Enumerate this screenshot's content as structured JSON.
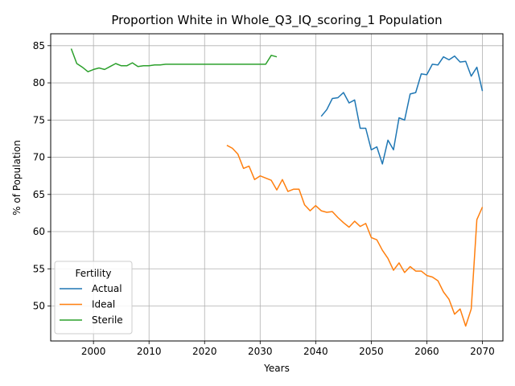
{
  "chart_data": {
    "type": "line",
    "title": "Proportion White in Whole_Q3_IQ_scoring_1 Population",
    "xlabel": "Years",
    "ylabel": "% of Population",
    "xlim": [
      1992.3,
      2073.7
    ],
    "ylim": [
      45.3,
      86.6
    ],
    "xticks": [
      2000,
      2010,
      2020,
      2030,
      2040,
      2050,
      2060,
      2070
    ],
    "yticks": [
      50,
      55,
      60,
      65,
      70,
      75,
      80,
      85
    ],
    "grid": true,
    "legend": {
      "title": "Fertility",
      "placement": "lower-left"
    },
    "series": [
      {
        "name": "Actual",
        "color": "#1f77b4",
        "x": [
          2041,
          2042,
          2043,
          2044,
          2045,
          2046,
          2047,
          2048,
          2049,
          2050,
          2051,
          2052,
          2053,
          2054,
          2055,
          2056,
          2057,
          2058,
          2059,
          2060,
          2061,
          2062,
          2063,
          2064,
          2065,
          2066,
          2067,
          2068,
          2069,
          2070
        ],
        "y": [
          75.5,
          76.4,
          77.9,
          78.0,
          78.7,
          77.3,
          77.7,
          73.9,
          73.9,
          71.0,
          71.4,
          69.1,
          72.3,
          71.0,
          75.3,
          75.0,
          78.5,
          78.7,
          81.2,
          81.1,
          82.5,
          82.4,
          83.5,
          83.1,
          83.6,
          82.8,
          82.9,
          80.9,
          82.1,
          78.9
        ]
      },
      {
        "name": "Ideal",
        "color": "#ff7f0e",
        "x": [
          2024,
          2025,
          2026,
          2027,
          2028,
          2029,
          2030,
          2031,
          2032,
          2033,
          2034,
          2035,
          2036,
          2037,
          2038,
          2039,
          2040,
          2041,
          2042,
          2043,
          2044,
          2045,
          2046,
          2047,
          2048,
          2049,
          2050,
          2051,
          2052,
          2053,
          2054,
          2055,
          2056,
          2057,
          2058,
          2059,
          2060,
          2061,
          2062,
          2063,
          2064,
          2065,
          2066,
          2067,
          2068,
          2069,
          2070
        ],
        "y": [
          71.6,
          71.2,
          70.4,
          68.5,
          68.8,
          67.0,
          67.5,
          67.2,
          66.9,
          65.6,
          67.0,
          65.4,
          65.7,
          65.7,
          63.6,
          62.8,
          63.5,
          62.8,
          62.6,
          62.7,
          61.9,
          61.2,
          60.6,
          61.4,
          60.7,
          61.1,
          59.2,
          58.9,
          57.5,
          56.4,
          54.8,
          55.8,
          54.5,
          55.3,
          54.7,
          54.7,
          54.1,
          53.9,
          53.4,
          51.9,
          50.9,
          48.9,
          49.6,
          47.3,
          49.6,
          61.6,
          63.3
        ]
      },
      {
        "name": "Sterile",
        "color": "#2ca02c",
        "x": [
          1996,
          1997,
          1998,
          1999,
          2000,
          2001,
          2002,
          2003,
          2004,
          2005,
          2006,
          2007,
          2008,
          2009,
          2010,
          2011,
          2012,
          2013,
          2014,
          2015,
          2016,
          2017,
          2018,
          2019,
          2020,
          2021,
          2022,
          2023,
          2024,
          2025,
          2026,
          2027,
          2028,
          2029,
          2030,
          2031,
          2032,
          2033
        ],
        "y": [
          84.6,
          82.6,
          82.1,
          81.5,
          81.8,
          82.0,
          81.8,
          82.2,
          82.6,
          82.3,
          82.3,
          82.7,
          82.2,
          82.3,
          82.3,
          82.4,
          82.4,
          82.5,
          82.5,
          82.5,
          82.5,
          82.5,
          82.5,
          82.5,
          82.5,
          82.5,
          82.5,
          82.5,
          82.5,
          82.5,
          82.5,
          82.5,
          82.5,
          82.5,
          82.5,
          82.5,
          83.7,
          83.5
        ]
      }
    ]
  }
}
